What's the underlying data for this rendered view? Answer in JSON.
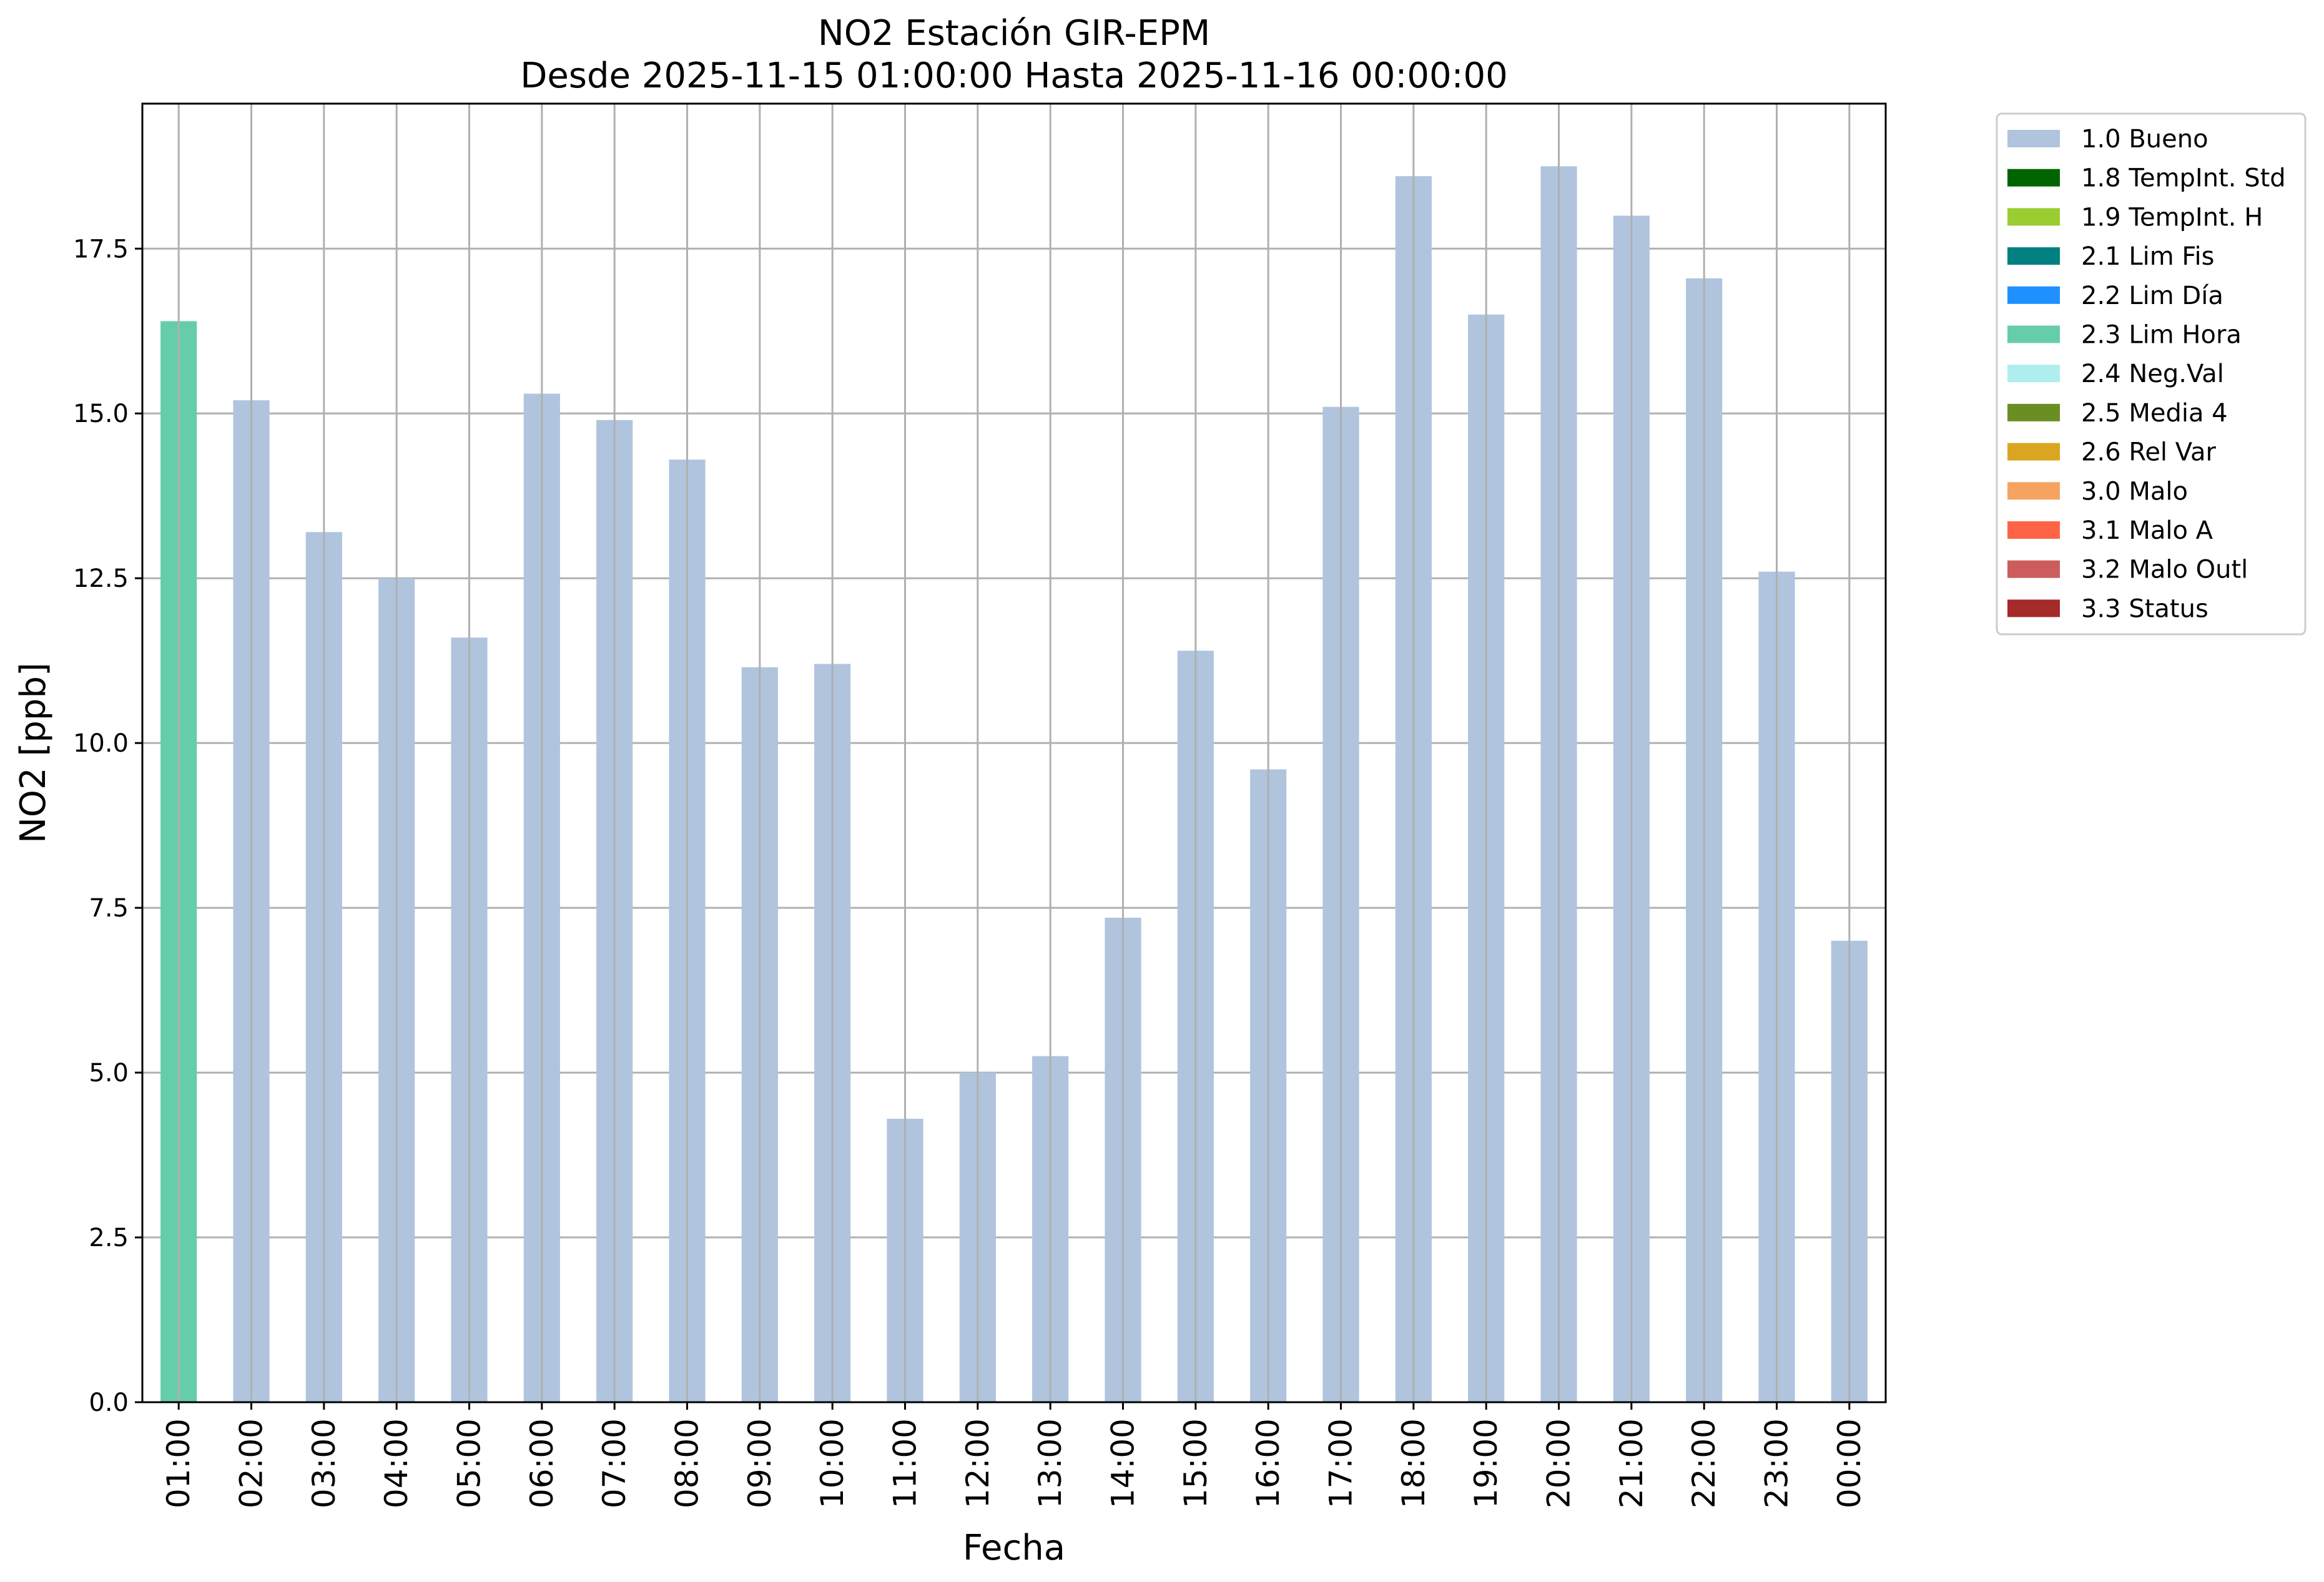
{
  "chart_data": {
    "type": "bar",
    "title": "NO2 Estación GIR-EPM",
    "subtitle": "Desde 2025-11-15 01:00:00 Hasta 2025-11-16 00:00:00",
    "xlabel": "Fecha",
    "ylabel": "NO2 [ppb]",
    "ylim": [
      0,
      19.7
    ],
    "yticks": [
      "0.0",
      "2.5",
      "5.0",
      "7.5",
      "10.0",
      "12.5",
      "15.0",
      "17.5"
    ],
    "grid": true,
    "legend_position": "outside-top-right",
    "categories": [
      "01:00",
      "02:00",
      "03:00",
      "04:00",
      "05:00",
      "06:00",
      "07:00",
      "08:00",
      "09:00",
      "10:00",
      "11:00",
      "12:00",
      "13:00",
      "14:00",
      "15:00",
      "16:00",
      "17:00",
      "18:00",
      "19:00",
      "20:00",
      "21:00",
      "22:00",
      "23:00",
      "00:00"
    ],
    "values": [
      16.4,
      15.2,
      13.2,
      12.5,
      11.6,
      15.3,
      14.9,
      14.3,
      11.15,
      11.2,
      4.3,
      5.0,
      5.25,
      7.35,
      11.4,
      9.6,
      15.1,
      18.6,
      16.5,
      18.75,
      18.0,
      17.05,
      12.6,
      7.0
    ],
    "flags": [
      "2.3 Lim Hora",
      "1.0 Bueno",
      "1.0 Bueno",
      "1.0 Bueno",
      "1.0 Bueno",
      "1.0 Bueno",
      "1.0 Bueno",
      "1.0 Bueno",
      "1.0 Bueno",
      "1.0 Bueno",
      "1.0 Bueno",
      "1.0 Bueno",
      "1.0 Bueno",
      "1.0 Bueno",
      "1.0 Bueno",
      "1.0 Bueno",
      "1.0 Bueno",
      "1.0 Bueno",
      "1.0 Bueno",
      "1.0 Bueno",
      "1.0 Bueno",
      "1.0 Bueno",
      "1.0 Bueno",
      "1.0 Bueno"
    ],
    "legend": [
      {
        "label": "1.0 Bueno",
        "color": "#b0c4de"
      },
      {
        "label": "1.8 TempInt. Std",
        "color": "#006400"
      },
      {
        "label": "1.9 TempInt. H",
        "color": "#9acd32"
      },
      {
        "label": "2.1 Lim Fis",
        "color": "#008080"
      },
      {
        "label": "2.2 Lim Día",
        "color": "#1e90ff"
      },
      {
        "label": "2.3 Lim Hora",
        "color": "#66cdaa"
      },
      {
        "label": "2.4 Neg.Val",
        "color": "#afeeee"
      },
      {
        "label": "2.5 Media 4",
        "color": "#6b8e23"
      },
      {
        "label": "2.6 Rel Var",
        "color": "#daa520"
      },
      {
        "label": "3.0 Malo",
        "color": "#f4a460"
      },
      {
        "label": "3.1 Malo A",
        "color": "#ff6347"
      },
      {
        "label": "3.2 Malo Outl",
        "color": "#cd5c5c"
      },
      {
        "label": "3.3 Status",
        "color": "#a52a2a"
      }
    ]
  }
}
